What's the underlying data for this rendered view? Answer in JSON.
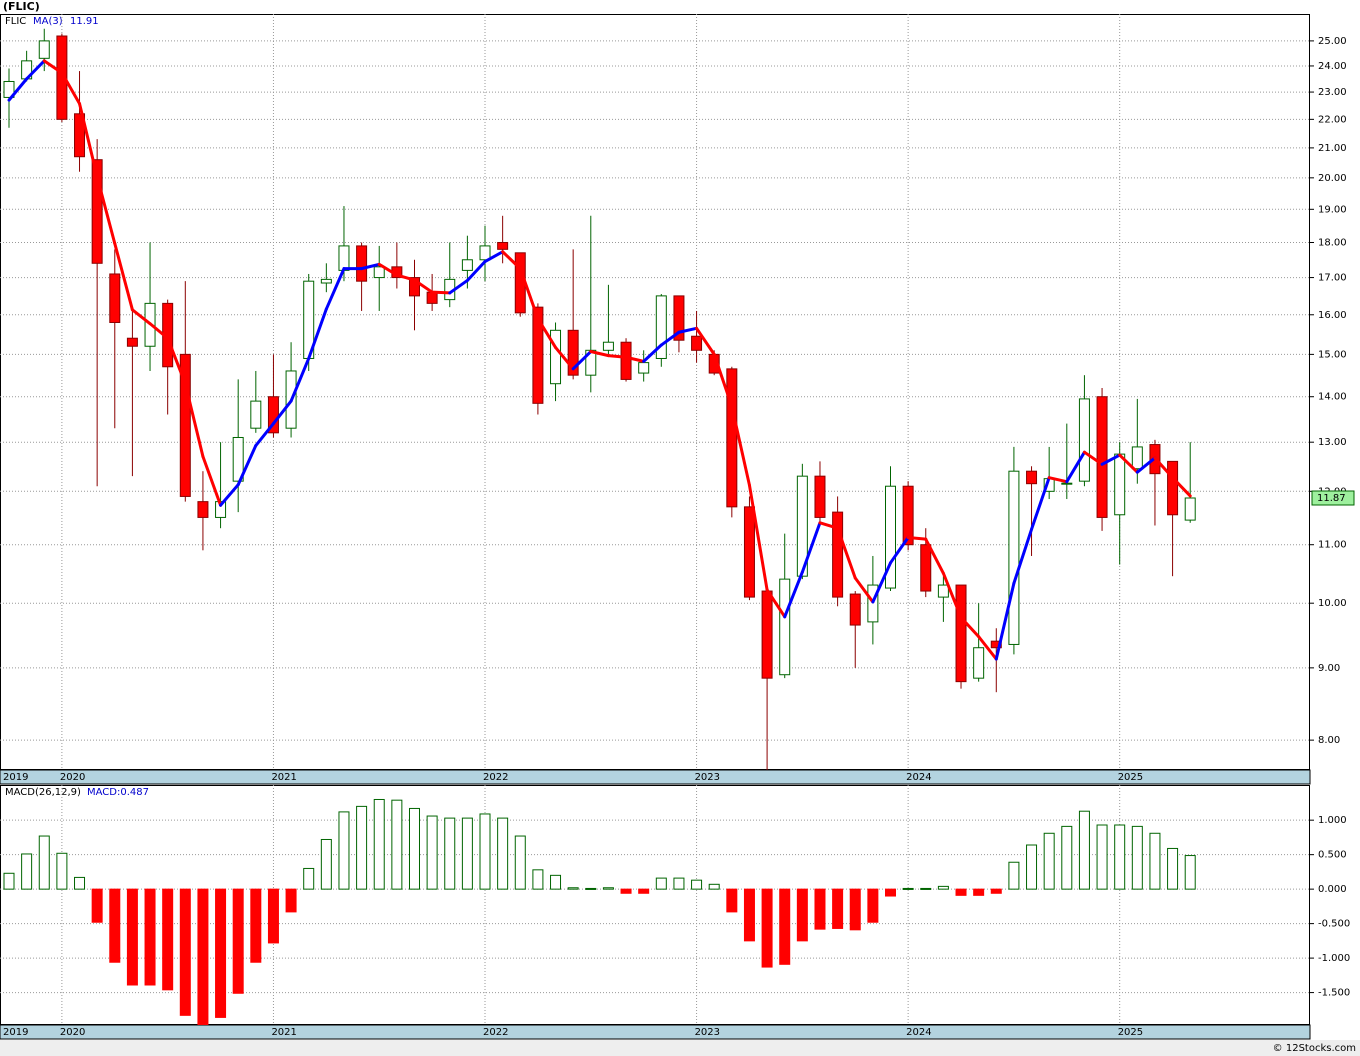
{
  "chart_data": [
    {
      "type": "candlestick",
      "title": "(FLIC)",
      "symbol": "FLIC",
      "categories": [
        "2019",
        null,
        null,
        "2020",
        null,
        null,
        null,
        null,
        null,
        null,
        null,
        null,
        null,
        null,
        null,
        "2021",
        null,
        null,
        null,
        null,
        null,
        null,
        null,
        null,
        null,
        null,
        null,
        "2022",
        null,
        null,
        null,
        null,
        null,
        null,
        null,
        null,
        null,
        null,
        null,
        "2023",
        null,
        null,
        null,
        null,
        null,
        null,
        null,
        null,
        null,
        null,
        null,
        "2024",
        null,
        null,
        null,
        null,
        null,
        null,
        null,
        null,
        null,
        null,
        null,
        "2025",
        null,
        null,
        null,
        null
      ],
      "open": [
        22.8,
        23.5,
        24.3,
        25.2,
        22.2,
        20.6,
        17.1,
        15.4,
        15.2,
        16.3,
        15.0,
        11.8,
        11.5,
        12.2,
        13.3,
        14.0,
        13.3,
        14.9,
        16.85,
        17.2,
        17.9,
        17.0,
        17.3,
        17.0,
        16.6,
        16.4,
        17.2,
        17.5,
        18.0,
        17.7,
        16.2,
        14.3,
        15.6,
        14.5,
        15.1,
        15.3,
        14.55,
        14.9,
        16.5,
        15.45,
        15.0,
        14.65,
        11.7,
        10.2,
        8.9,
        10.45,
        12.3,
        11.6,
        10.15,
        9.7,
        10.25,
        12.1,
        11.0,
        10.1,
        10.3,
        8.85,
        9.4,
        9.35,
        12.4,
        12.0,
        12.14,
        12.2,
        14.0,
        11.55,
        12.45,
        12.95,
        12.6,
        11.45
      ],
      "high": [
        23.9,
        24.6,
        25.5,
        25.3,
        23.8,
        21.3,
        17.8,
        16.1,
        18.0,
        16.4,
        16.9,
        12.4,
        13.0,
        14.4,
        14.6,
        15.0,
        15.3,
        17.1,
        17.4,
        19.1,
        18.0,
        17.9,
        18.0,
        17.5,
        17.1,
        18.0,
        18.2,
        18.5,
        18.8,
        17.7,
        16.3,
        15.8,
        17.8,
        18.8,
        16.8,
        15.4,
        15.1,
        16.55,
        16.5,
        16.1,
        15.1,
        14.7,
        11.9,
        10.2,
        11.2,
        12.55,
        12.6,
        11.9,
        10.2,
        10.8,
        12.5,
        12.2,
        11.3,
        10.45,
        10.3,
        10.0,
        9.6,
        12.9,
        12.5,
        12.9,
        13.4,
        14.5,
        14.2,
        13.0,
        13.95,
        13.05,
        12.6,
        13.0
      ],
      "low": [
        21.7,
        23.4,
        23.8,
        21.9,
        20.2,
        12.1,
        13.3,
        12.3,
        14.6,
        13.6,
        11.8,
        10.9,
        11.3,
        11.6,
        13.2,
        13.1,
        13.1,
        14.6,
        16.6,
        16.9,
        16.1,
        16.1,
        16.7,
        15.6,
        16.1,
        16.2,
        16.7,
        16.9,
        17.4,
        15.95,
        13.6,
        13.9,
        14.4,
        14.1,
        14.95,
        14.35,
        14.35,
        14.7,
        15.05,
        14.8,
        14.5,
        11.5,
        10.05,
        7.6,
        8.85,
        10.4,
        11.35,
        9.95,
        9.0,
        9.35,
        10.2,
        10.9,
        10.1,
        9.7,
        8.7,
        8.8,
        8.65,
        9.2,
        10.8,
        11.85,
        11.85,
        12.1,
        11.25,
        10.65,
        12.15,
        11.35,
        10.45,
        11.4
      ],
      "close": [
        23.4,
        24.2,
        25.0,
        22.0,
        20.7,
        17.4,
        15.8,
        15.2,
        16.3,
        14.7,
        11.9,
        11.5,
        11.8,
        13.1,
        13.9,
        13.2,
        14.6,
        16.9,
        16.95,
        17.9,
        16.9,
        17.3,
        17.0,
        16.5,
        16.3,
        16.95,
        17.5,
        17.9,
        17.8,
        16.05,
        13.85,
        15.6,
        14.5,
        15.1,
        15.3,
        14.4,
        14.8,
        16.5,
        15.35,
        15.1,
        14.55,
        11.7,
        10.1,
        8.85,
        10.4,
        12.3,
        11.5,
        10.1,
        9.65,
        10.3,
        12.1,
        11.0,
        10.2,
        10.3,
        8.8,
        9.3,
        9.3,
        12.4,
        12.15,
        12.25,
        12.16,
        13.95,
        11.5,
        12.75,
        12.9,
        12.35,
        11.55,
        11.87
      ],
      "up_color": "#006400",
      "down_color": "#ff0000",
      "ma": {
        "name": "MA(3)",
        "rising_color": "#0000ff",
        "falling_color": "#ff0000",
        "values": [
          22.7,
          23.5,
          24.2,
          23.73,
          22.57,
          20.03,
          17.97,
          16.13,
          15.77,
          15.4,
          14.3,
          12.7,
          11.73,
          12.13,
          12.93,
          13.4,
          13.9,
          14.9,
          16.15,
          17.25,
          17.25,
          17.37,
          17.07,
          16.93,
          16.6,
          16.58,
          16.92,
          17.45,
          17.73,
          17.25,
          15.9,
          15.17,
          14.65,
          15.07,
          14.97,
          14.93,
          14.83,
          15.23,
          15.55,
          15.65,
          15.0,
          13.78,
          12.12,
          10.22,
          9.78,
          10.52,
          11.4,
          11.3,
          10.42,
          10.02,
          10.68,
          11.13,
          11.1,
          10.5,
          9.77,
          9.47,
          9.13,
          10.33,
          11.28,
          12.27,
          12.19,
          12.79,
          12.54,
          12.73,
          12.38,
          12.67,
          12.27,
          11.91
        ]
      },
      "ylim": [
        7.62,
        26.12
      ],
      "log_scale": true,
      "grid": true,
      "yticks": [
        {
          "value": 8,
          "label": "8.00"
        },
        {
          "value": 9,
          "label": "9.00"
        },
        {
          "value": 10,
          "label": "10.00"
        },
        {
          "value": 11,
          "label": "11.00"
        },
        {
          "value": 12,
          "label": "12.00"
        },
        {
          "value": 13,
          "label": "13.00"
        },
        {
          "value": 14,
          "label": "14.00"
        },
        {
          "value": 15,
          "label": "15.00"
        },
        {
          "value": 16,
          "label": "16.00"
        },
        {
          "value": 17,
          "label": "17.00"
        },
        {
          "value": 18,
          "label": "18.00"
        },
        {
          "value": 19,
          "label": "19.00"
        },
        {
          "value": 20,
          "label": "20.00"
        },
        {
          "value": 21,
          "label": "21.00"
        },
        {
          "value": 22,
          "label": "22.00"
        },
        {
          "value": 23,
          "label": "23.00"
        },
        {
          "value": 24,
          "label": "24.00"
        },
        {
          "value": 25,
          "label": "25.00"
        }
      ]
    },
    {
      "type": "bar",
      "title": "MACD(26,12,9)",
      "legend": "MACD:0.487",
      "categories": [
        "2019",
        null,
        null,
        "2020",
        null,
        null,
        null,
        null,
        null,
        null,
        null,
        null,
        null,
        null,
        null,
        "2021",
        null,
        null,
        null,
        null,
        null,
        null,
        null,
        null,
        null,
        null,
        null,
        "2022",
        null,
        null,
        null,
        null,
        null,
        null,
        null,
        null,
        null,
        null,
        null,
        "2023",
        null,
        null,
        null,
        null,
        null,
        null,
        null,
        null,
        null,
        null,
        null,
        "2024",
        null,
        null,
        null,
        null,
        null,
        null,
        null,
        null,
        null,
        null,
        null,
        "2025",
        null,
        null,
        null,
        null
      ],
      "values": [
        0.23,
        0.51,
        0.77,
        0.52,
        0.17,
        -0.48,
        -1.06,
        -1.39,
        -1.39,
        -1.46,
        -1.83,
        -1.97,
        -1.86,
        -1.51,
        -1.06,
        -0.78,
        -0.33,
        0.3,
        0.72,
        1.12,
        1.2,
        1.3,
        1.29,
        1.17,
        1.06,
        1.03,
        1.03,
        1.09,
        1.03,
        0.77,
        0.28,
        0.2,
        0.02,
        0.01,
        0.02,
        -0.06,
        -0.06,
        0.16,
        0.16,
        0.13,
        0.07,
        -0.33,
        -0.75,
        -1.13,
        -1.09,
        -0.75,
        -0.58,
        -0.57,
        -0.59,
        -0.48,
        -0.1,
        0.01,
        0.01,
        0.04,
        -0.09,
        -0.09,
        -0.06,
        0.39,
        0.64,
        0.81,
        0.91,
        1.13,
        0.93,
        0.93,
        0.91,
        0.81,
        0.59,
        0.487
      ],
      "positive_color": "#006400",
      "negative_color": "#ff0000",
      "ylim": [
        -1.97,
        1.51
      ],
      "grid": true,
      "yticks": [
        {
          "value": -1.5,
          "label": "-1.500"
        },
        {
          "value": -1,
          "label": "-1.000"
        },
        {
          "value": -0.5,
          "label": "-0.500"
        },
        {
          "value": 0,
          "label": "0.000"
        },
        {
          "value": 0.5,
          "label": "0.500"
        },
        {
          "value": 1,
          "label": "1.000"
        }
      ]
    }
  ],
  "footer": "© 12Stocks.com"
}
